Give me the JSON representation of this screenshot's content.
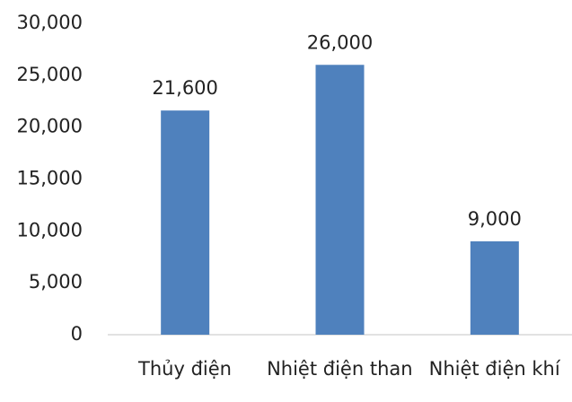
{
  "chart_data": {
    "type": "bar",
    "categories": [
      "Thủy điện",
      "Nhiệt điện than",
      "Nhiệt điện khí"
    ],
    "values": [
      21600,
      26000,
      9000
    ],
    "value_labels": [
      "21,600",
      "26,000",
      "9,000"
    ],
    "color": "#4f81bd",
    "ylim": [
      0,
      30000
    ],
    "yticks": [
      0,
      {
        "value": 5000,
        "label": "5,000"
      },
      {
        "value": 10000,
        "label": "10,000"
      },
      {
        "value": 15000,
        "label": "15,000"
      },
      {
        "value": 20000,
        "label": "20,000"
      },
      {
        "value": 25000,
        "label": "25,000"
      },
      {
        "value": 30000,
        "label": "30,000"
      }
    ],
    "grid": false
  }
}
